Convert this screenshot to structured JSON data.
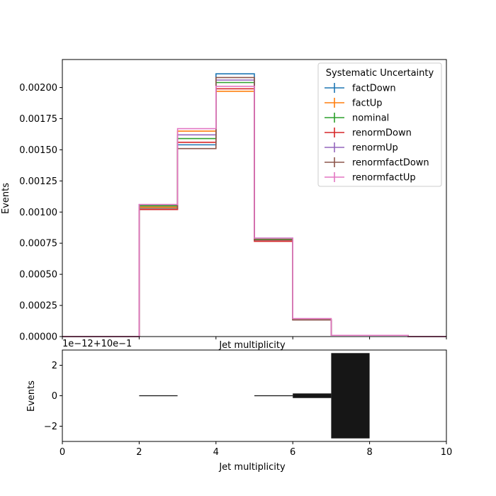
{
  "chart_data": [
    {
      "type": "step",
      "title": "",
      "xlabel": "Jet multiplicity",
      "ylabel": "Events",
      "xlim": [
        0,
        10
      ],
      "ylim": [
        0,
        0.002225
      ],
      "bin_edges": [
        0,
        1,
        2,
        3,
        4,
        5,
        6,
        7,
        8,
        9,
        10
      ],
      "xticks": [
        0,
        2,
        4,
        6,
        8,
        10
      ],
      "yticks": [
        0.0,
        0.00025,
        0.0005,
        0.00075,
        0.001,
        0.00125,
        0.0015,
        0.00175,
        0.002
      ],
      "ytick_labels": [
        "0.00000",
        "0.00025",
        "0.00050",
        "0.00075",
        "0.00100",
        "0.00125",
        "0.00150",
        "0.00175",
        "0.00200"
      ],
      "grid": false,
      "legend": {
        "title": "Systematic Uncertainty",
        "placement": "top-right"
      },
      "series": [
        {
          "name": "factDown",
          "color": "#1f77b4",
          "values": [
            0,
            0,
            0.00105,
            0.00154,
            0.00211,
            0.00079,
            0.000135,
            1e-05,
            1e-05,
            0
          ]
        },
        {
          "name": "factUp",
          "color": "#ff7f0e",
          "values": [
            0,
            0,
            0.00104,
            0.00165,
            0.00197,
            0.00078,
            0.000135,
            1e-05,
            1e-05,
            0
          ]
        },
        {
          "name": "nominal",
          "color": "#2ca02c",
          "values": [
            0,
            0,
            0.00105,
            0.00159,
            0.00204,
            0.00078,
            0.000135,
            1e-05,
            1e-05,
            0
          ]
        },
        {
          "name": "renormDown",
          "color": "#d62728",
          "values": [
            0,
            0,
            0.00102,
            0.00156,
            0.00199,
            0.000765,
            0.000135,
            1e-05,
            1e-05,
            0
          ]
        },
        {
          "name": "renormUp",
          "color": "#9467bd",
          "values": [
            0,
            0,
            0.00106,
            0.00162,
            0.00206,
            0.00079,
            0.000135,
            1e-05,
            1e-05,
            0
          ]
        },
        {
          "name": "renormfactDown",
          "color": "#8c564b",
          "values": [
            0,
            0,
            0.00103,
            0.00151,
            0.00208,
            0.000775,
            0.000135,
            1e-05,
            1e-05,
            0
          ]
        },
        {
          "name": "renormfactUp",
          "color": "#e377c2",
          "values": [
            0,
            0,
            0.00106,
            0.00167,
            0.00201,
            0.00079,
            0.000145,
            1e-05,
            1e-05,
            0
          ]
        }
      ]
    },
    {
      "type": "bar",
      "title": "",
      "xlabel": "Jet multiplicity",
      "ylabel": "Events",
      "offset_text": "1e−12+10e−1",
      "xlim": [
        0,
        10
      ],
      "ylim": [
        -3,
        3
      ],
      "xticks": [
        0,
        2,
        4,
        6,
        8,
        10
      ],
      "yticks": [
        -2,
        0,
        2
      ],
      "ytick_labels": [
        "−2",
        "0",
        "2"
      ],
      "grid": false,
      "color": "#161616",
      "bins": [
        {
          "x0": 2,
          "x1": 3,
          "low": -0.03,
          "high": 0.03
        },
        {
          "x0": 5,
          "x1": 6,
          "low": -0.03,
          "high": 0.03
        },
        {
          "x0": 6,
          "x1": 7,
          "low": -0.15,
          "high": 0.15
        },
        {
          "x0": 7,
          "x1": 8,
          "low": -2.8,
          "high": 2.8
        }
      ]
    }
  ]
}
